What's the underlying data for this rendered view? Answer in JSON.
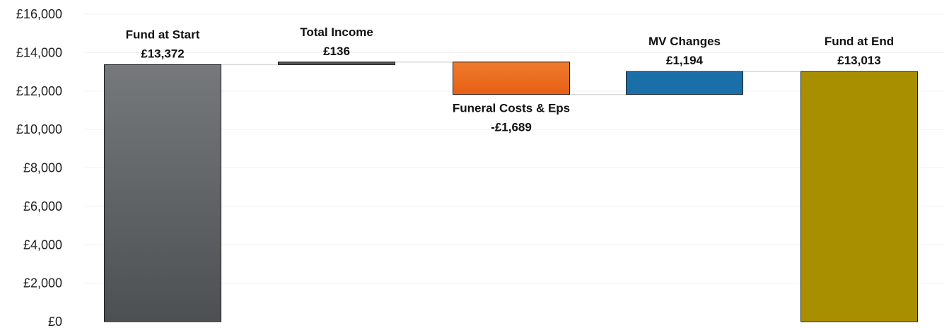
{
  "chart_data": {
    "type": "waterfall",
    "title": "",
    "xlabel": "",
    "ylabel": "",
    "ylim": [
      0,
      16000
    ],
    "yticks": [
      0,
      2000,
      4000,
      6000,
      8000,
      10000,
      12000,
      14000,
      16000
    ],
    "ytick_labels": [
      "£0",
      "£2,000",
      "£4,000",
      "£6,000",
      "£8,000",
      "£10,000",
      "£12,000",
      "£14,000",
      "£16,000"
    ],
    "grid": true,
    "connector_lines": true,
    "steps": [
      {
        "category": "Fund at Start",
        "kind": "total",
        "start": 0,
        "end": 13372,
        "value_label": "£13,372",
        "color": "#5f6467"
      },
      {
        "category": "Total Income",
        "kind": "change",
        "start": 13372,
        "end": 13508,
        "value_label": "£136",
        "color": "#555555"
      },
      {
        "category": "Funeral Costs & Eps",
        "kind": "change",
        "start": 13508,
        "end": 11819,
        "value_label": "-£1,689",
        "color": "#ec6a1f"
      },
      {
        "category": "MV Changes",
        "kind": "change",
        "start": 11819,
        "end": 13013,
        "value_label": "£1,194",
        "color": "#1a6fa8"
      },
      {
        "category": "Fund at End",
        "kind": "total",
        "start": 0,
        "end": 13013,
        "value_label": "£13,013",
        "color": "#a88f00"
      }
    ]
  }
}
